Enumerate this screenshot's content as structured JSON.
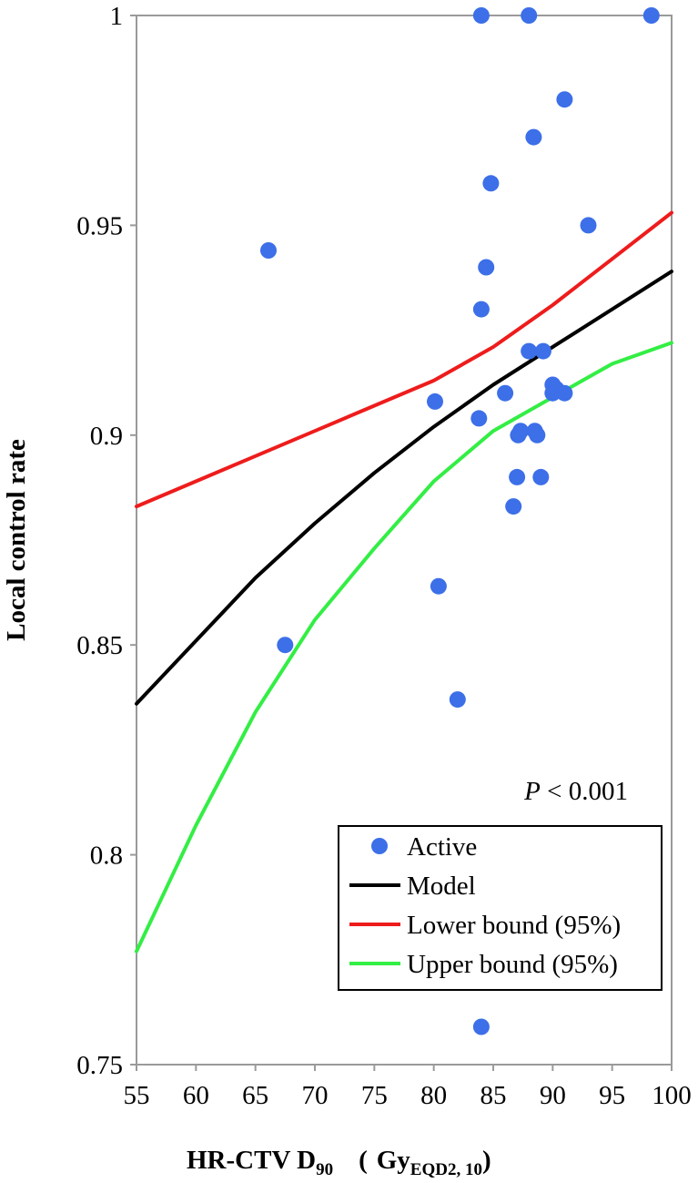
{
  "chart_data": {
    "type": "scatter",
    "title": "",
    "xlabel": "HR-CTV D",
    "xlabel_sub": "90",
    "xlabel_unit": "Gy",
    "xlabel_unit_sub": "EQD2, 10",
    "xlabel_paren_open": "(",
    "xlabel_paren_close": ")",
    "ylabel": "Local control rate",
    "xlim": [
      55,
      100
    ],
    "ylim": [
      0.75,
      1.0
    ],
    "xticks": [
      55,
      60,
      65,
      70,
      75,
      80,
      85,
      90,
      95,
      100
    ],
    "xtick_labels": [
      "55",
      "60",
      "65",
      "70",
      "75",
      "80",
      "85",
      "90",
      "95",
      "100"
    ],
    "yticks": [
      0.75,
      0.8,
      0.85,
      0.9,
      0.95,
      1.0
    ],
    "ytick_labels": [
      "0.75",
      "0.8",
      "0.85",
      "0.9",
      "0.95",
      "1"
    ],
    "annotation": {
      "italic": "P",
      "rest": " < 0.001"
    },
    "legend_position": "lower-right",
    "series": [
      {
        "name": "Active",
        "kind": "scatter",
        "color": "#3c6fe8",
        "points": [
          [
            66.1,
            0.944
          ],
          [
            67.5,
            0.85
          ],
          [
            80.1,
            0.908
          ],
          [
            80.4,
            0.864
          ],
          [
            82.0,
            0.837
          ],
          [
            83.8,
            0.904
          ],
          [
            84.0,
            0.93
          ],
          [
            84.0,
            1.0
          ],
          [
            84.0,
            0.759
          ],
          [
            84.4,
            0.94
          ],
          [
            84.8,
            0.96
          ],
          [
            86.0,
            0.91
          ],
          [
            86.7,
            0.883
          ],
          [
            87.0,
            0.89
          ],
          [
            87.1,
            0.9
          ],
          [
            87.3,
            0.901
          ],
          [
            88.0,
            0.92
          ],
          [
            88.0,
            1.0
          ],
          [
            88.4,
            0.971
          ],
          [
            88.5,
            0.901
          ],
          [
            88.7,
            0.9
          ],
          [
            89.0,
            0.89
          ],
          [
            89.2,
            0.92
          ],
          [
            90.0,
            0.912
          ],
          [
            90.0,
            0.91
          ],
          [
            90.3,
            0.911
          ],
          [
            91.0,
            0.91
          ],
          [
            91.0,
            0.98
          ],
          [
            93.0,
            0.95
          ],
          [
            98.3,
            1.0
          ]
        ]
      },
      {
        "name": "Model",
        "kind": "line",
        "color": "#000000",
        "points": [
          [
            55,
            0.836
          ],
          [
            60,
            0.851
          ],
          [
            65,
            0.866
          ],
          [
            70,
            0.879
          ],
          [
            75,
            0.891
          ],
          [
            80,
            0.902
          ],
          [
            85,
            0.912
          ],
          [
            90,
            0.921
          ],
          [
            95,
            0.93
          ],
          [
            100,
            0.939
          ]
        ]
      },
      {
        "name": "Lower bound (95%)",
        "kind": "line",
        "color": "#ee1c1c",
        "points": [
          [
            55,
            0.883
          ],
          [
            60,
            0.889
          ],
          [
            65,
            0.895
          ],
          [
            70,
            0.901
          ],
          [
            75,
            0.907
          ],
          [
            80,
            0.913
          ],
          [
            85,
            0.921
          ],
          [
            90,
            0.931
          ],
          [
            95,
            0.942
          ],
          [
            100,
            0.953
          ]
        ]
      },
      {
        "name": "Upper bound (95%)",
        "kind": "line",
        "color": "#33ee44",
        "points": [
          [
            55,
            0.777
          ],
          [
            60,
            0.807
          ],
          [
            65,
            0.834
          ],
          [
            70,
            0.856
          ],
          [
            75,
            0.873
          ],
          [
            80,
            0.889
          ],
          [
            85,
            0.901
          ],
          [
            90,
            0.909
          ],
          [
            95,
            0.917
          ],
          [
            100,
            0.922
          ]
        ]
      }
    ]
  }
}
